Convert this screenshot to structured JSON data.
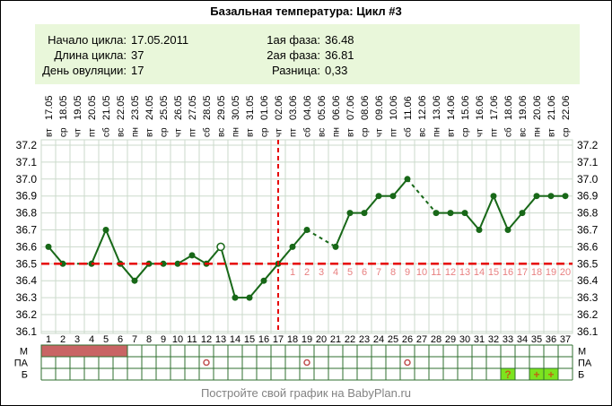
{
  "title": "Базальная температура: Цикл #3",
  "info": {
    "left": [
      {
        "label": "Начало цикла:",
        "value": "17.05.2011"
      },
      {
        "label": "Длина цикла:",
        "value": "37"
      },
      {
        "label": "День овуляции:",
        "value": "17"
      }
    ],
    "right": [
      {
        "label": "1ая фаза:",
        "value": "36.48"
      },
      {
        "label": "2ая фаза:",
        "value": "36.81"
      },
      {
        "label": "Разница:",
        "value": "0,33"
      }
    ]
  },
  "footer": "Постройте свой график на BabyPlan.ru",
  "colors": {
    "grid": "#cbdacb",
    "line": "#186818",
    "red": "#e60000",
    "dpo": "#e88080",
    "menses": "#c96464",
    "pa": "#c05050",
    "bcell": "#7de31f",
    "symbol": "#bf6414",
    "table_border": "#2f6f2f",
    "info_bg": "#e9f7da",
    "footer_text": "#838383"
  },
  "chart_data": {
    "type": "line",
    "title": "Базальная температура: Цикл #3",
    "ylabel": "",
    "xlabel": "",
    "ylim": [
      36.1,
      37.2
    ],
    "grid": true,
    "legend_position": "none",
    "y_ticks": [
      "37.2",
      "37.1",
      "37.0",
      "36.9",
      "36.8",
      "36.7",
      "36.6",
      "36.5",
      "36.4",
      "36.3",
      "36.2",
      "36.1"
    ],
    "coverline_temp": 36.5,
    "ovulation_day": 17,
    "days": [
      {
        "day": 1,
        "date": "17.05",
        "weekday": "вт",
        "temp": 36.6
      },
      {
        "day": 2,
        "date": "18.05",
        "weekday": "ср",
        "temp": 36.5
      },
      {
        "day": 3,
        "date": "19.05",
        "weekday": "чт",
        "temp": null
      },
      {
        "day": 4,
        "date": "20.05",
        "weekday": "пт",
        "temp": 36.5
      },
      {
        "day": 5,
        "date": "21.05",
        "weekday": "сб",
        "temp": 36.7
      },
      {
        "day": 6,
        "date": "22.05",
        "weekday": "вс",
        "temp": 36.5
      },
      {
        "day": 7,
        "date": "23.05",
        "weekday": "пн",
        "temp": 36.4
      },
      {
        "day": 8,
        "date": "24.05",
        "weekday": "вт",
        "temp": 36.5
      },
      {
        "day": 9,
        "date": "25.05",
        "weekday": "ср",
        "temp": 36.5
      },
      {
        "day": 10,
        "date": "26.05",
        "weekday": "чт",
        "temp": 36.5
      },
      {
        "day": 11,
        "date": "27.05",
        "weekday": "пт",
        "temp": 36.55
      },
      {
        "day": 12,
        "date": "28.05",
        "weekday": "сб",
        "temp": 36.5
      },
      {
        "day": 13,
        "date": "29.05",
        "weekday": "вс",
        "temp": 36.6,
        "open": true
      },
      {
        "day": 14,
        "date": "30.05",
        "weekday": "пн",
        "temp": 36.3
      },
      {
        "day": 15,
        "date": "31.05",
        "weekday": "вт",
        "temp": 36.3
      },
      {
        "day": 16,
        "date": "01.06",
        "weekday": "ср",
        "temp": 36.4
      },
      {
        "day": 17,
        "date": "02.06",
        "weekday": "чт",
        "temp": 36.5
      },
      {
        "day": 18,
        "date": "03.06",
        "weekday": "пт",
        "temp": 36.6
      },
      {
        "day": 19,
        "date": "04.06",
        "weekday": "сб",
        "temp": 36.7
      },
      {
        "day": 20,
        "date": "05.06",
        "weekday": "вс",
        "temp": null
      },
      {
        "day": 21,
        "date": "06.06",
        "weekday": "пн",
        "temp": 36.6
      },
      {
        "day": 22,
        "date": "07.06",
        "weekday": "вт",
        "temp": 36.8
      },
      {
        "day": 23,
        "date": "08.06",
        "weekday": "ср",
        "temp": 36.8
      },
      {
        "day": 24,
        "date": "09.06",
        "weekday": "чт",
        "temp": 36.9
      },
      {
        "day": 25,
        "date": "10.06",
        "weekday": "пт",
        "temp": 36.9
      },
      {
        "day": 26,
        "date": "11.06",
        "weekday": "сб",
        "temp": 37.0
      },
      {
        "day": 27,
        "date": "12.06",
        "weekday": "вс",
        "temp": null
      },
      {
        "day": 28,
        "date": "13.06",
        "weekday": "пн",
        "temp": 36.8
      },
      {
        "day": 29,
        "date": "14.06",
        "weekday": "вт",
        "temp": 36.8
      },
      {
        "day": 30,
        "date": "15.06",
        "weekday": "ср",
        "temp": 36.8
      },
      {
        "day": 31,
        "date": "16.06",
        "weekday": "чт",
        "temp": 36.7
      },
      {
        "day": 32,
        "date": "17.06",
        "weekday": "пт",
        "temp": 36.9
      },
      {
        "day": 33,
        "date": "18.06",
        "weekday": "сб",
        "temp": 36.7
      },
      {
        "day": 34,
        "date": "19.06",
        "weekday": "вс",
        "temp": 36.8
      },
      {
        "day": 35,
        "date": "20.06",
        "weekday": "пн",
        "temp": 36.9
      },
      {
        "day": 36,
        "date": "21.06",
        "weekday": "вт",
        "temp": 36.9
      },
      {
        "day": 37,
        "date": "22.06",
        "weekday": "ср",
        "temp": 36.9
      }
    ],
    "dpo_labels": {
      "start_day": 18,
      "labels": [
        "1",
        "2",
        "3",
        "4",
        "5",
        "6",
        "7",
        "8",
        "9",
        "10",
        "11",
        "12",
        "13",
        "14",
        "15",
        "16",
        "17",
        "18",
        "19",
        "20"
      ]
    },
    "row_labels": [
      "М",
      "ПА",
      "Б"
    ],
    "rows": {
      "menses_days": [
        1,
        2,
        3,
        4,
        5,
        6
      ],
      "pa_days": [
        12,
        19,
        26
      ],
      "b_marks": [
        {
          "day": 33,
          "symbol": "?"
        },
        {
          "day": 35,
          "symbol": "+"
        },
        {
          "day": 36,
          "symbol": "+"
        }
      ]
    }
  }
}
